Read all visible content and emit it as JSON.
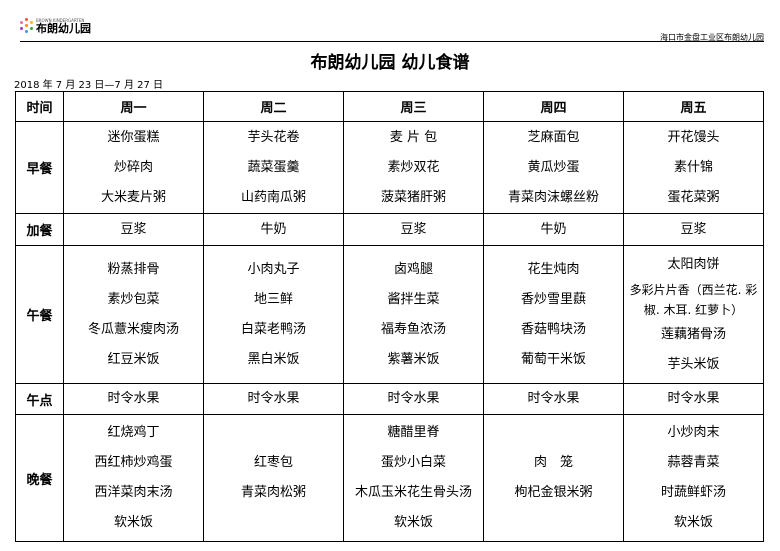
{
  "header": {
    "logo_text": "布朗幼儿园",
    "logo_sub": "BROWN KINDERGARTEN",
    "school": "海口市金盘工业区布朗幼儿园"
  },
  "title": "布朗幼儿园 幼儿食谱",
  "date_range": "2018 年 7 月 23 日—7 月 27 日",
  "table": {
    "columns": [
      "时间",
      "周一",
      "周二",
      "周三",
      "周四",
      "周五"
    ],
    "rows": [
      {
        "slot": "早餐",
        "cells": [
          [
            "迷你蛋糕",
            "炒碎肉",
            "大米麦片粥"
          ],
          [
            "芋头花卷",
            "蔬菜蛋羹",
            "山药南瓜粥"
          ],
          [
            "麦 片 包",
            "素炒双花",
            "菠菜猪肝粥"
          ],
          [
            "芝麻面包",
            "黄瓜炒蛋",
            "青菜肉沫螺丝粉"
          ],
          [
            "开花馒头",
            "素什锦",
            "蛋花菜粥"
          ]
        ]
      },
      {
        "slot": "加餐",
        "cells": [
          [
            "豆浆"
          ],
          [
            "牛奶"
          ],
          [
            "豆浆"
          ],
          [
            "牛奶"
          ],
          [
            "豆浆"
          ]
        ]
      },
      {
        "slot": "午餐",
        "cells": [
          [
            "粉蒸排骨",
            "素炒包菜",
            "冬瓜薏米瘦肉汤",
            "红豆米饭"
          ],
          [
            "小肉丸子",
            "地三鲜",
            "白菜老鸭汤",
            "黑白米饭"
          ],
          [
            "卤鸡腿",
            "酱拌生菜",
            "福寿鱼浓汤",
            "紫薯米饭"
          ],
          [
            "花生炖肉",
            "香炒雪里蕻",
            "香菇鸭块汤",
            "葡萄干米饭"
          ],
          [
            "太阳肉饼",
            "多彩片片香（西兰花. 彩椒. 木耳. 红萝卜）",
            "莲藕猪骨汤",
            "芋头米饭"
          ]
        ]
      },
      {
        "slot": "午点",
        "cells": [
          [
            "时令水果"
          ],
          [
            "时令水果"
          ],
          [
            "时令水果"
          ],
          [
            "时令水果"
          ],
          [
            "时令水果"
          ]
        ]
      },
      {
        "slot": "晚餐",
        "cells": [
          [
            "红烧鸡丁",
            "西红柿炒鸡蛋",
            "西洋菜肉末汤",
            "软米饭"
          ],
          [
            "红枣包",
            "青菜肉松粥"
          ],
          [
            "糖醋里脊",
            "蛋炒小白菜",
            "木瓜玉米花生骨头汤",
            "软米饭"
          ],
          [
            "肉　笼",
            "枸杞金银米粥"
          ],
          [
            "小炒肉末",
            "蒜蓉青菜",
            "时蔬鲜虾汤",
            "软米饭"
          ]
        ]
      }
    ]
  }
}
